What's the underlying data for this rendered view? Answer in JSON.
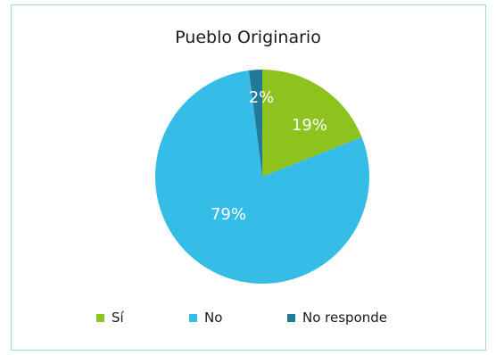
{
  "chart_data": {
    "type": "pie",
    "title": "Pueblo Originario",
    "slices": [
      {
        "label": "Sí",
        "value": 19,
        "display": "19%",
        "color": "#8dc21f"
      },
      {
        "label": "No",
        "value": 79,
        "display": "79%",
        "color": "#35bde8"
      },
      {
        "label": "No responde",
        "value": 2,
        "display": "2%",
        "color": "#227a9b"
      }
    ],
    "start_angle_deg": 0,
    "direction": "clockwise",
    "legend_position": "bottom",
    "border_color": "#9fd6ec"
  }
}
